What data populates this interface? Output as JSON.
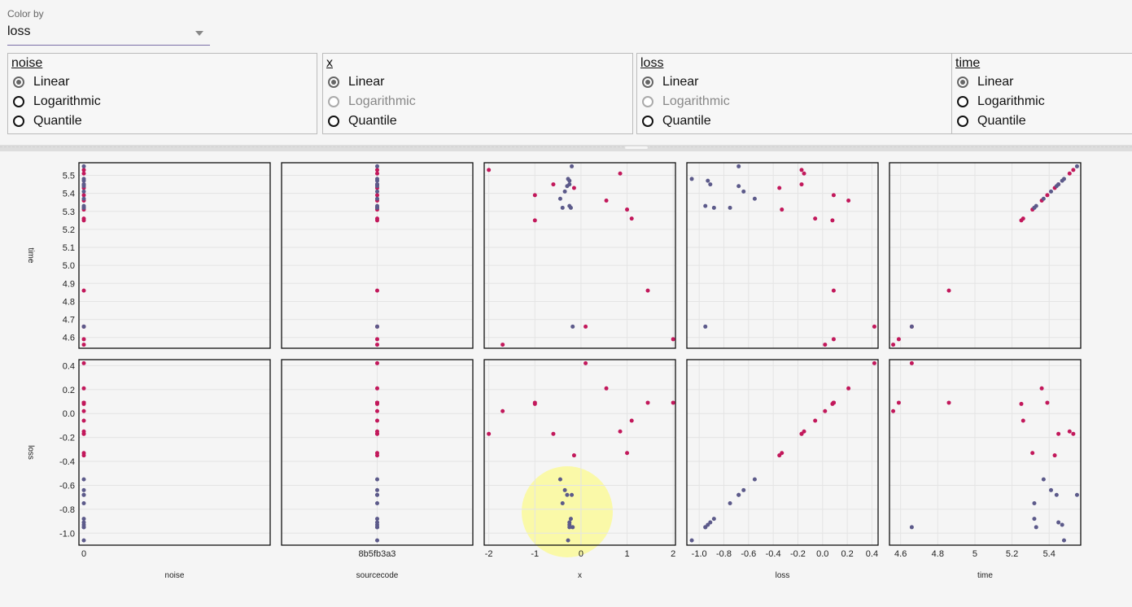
{
  "color_by": {
    "label": "Color by",
    "value": "loss"
  },
  "scales": [
    {
      "title": "noise",
      "options": [
        "Linear",
        "Logarithmic",
        "Quantile"
      ],
      "selected": 0,
      "disabled": []
    },
    {
      "title": "x",
      "options": [
        "Linear",
        "Logarithmic",
        "Quantile"
      ],
      "selected": 0,
      "disabled": [
        1
      ]
    },
    {
      "title": "loss",
      "options": [
        "Linear",
        "Logarithmic",
        "Quantile"
      ],
      "selected": 0,
      "disabled": [
        1
      ]
    },
    {
      "title": "time",
      "options": [
        "Linear",
        "Logarithmic",
        "Quantile"
      ],
      "selected": 0,
      "disabled": []
    }
  ],
  "colors": {
    "high": "#c2185b",
    "low": "#5c5a8a",
    "highlight": "#fbf9a0"
  },
  "chart_data": {
    "type": "scatter",
    "columns": [
      "noise",
      "sourcecode",
      "x",
      "loss",
      "time"
    ],
    "rows": [
      "time",
      "loss"
    ],
    "axes": {
      "noise": {
        "label": "noise",
        "categorical": true,
        "categories": [
          "0"
        ]
      },
      "sourcecode": {
        "label": "sourcecode",
        "categorical": true,
        "categories": [
          "8b5fb3a3"
        ]
      },
      "x": {
        "label": "x",
        "range": [
          -2.1,
          2.05
        ],
        "ticks": [
          -2,
          -1,
          0,
          1,
          2
        ]
      },
      "loss": {
        "label": "loss",
        "range": [
          -1.1,
          0.45
        ],
        "ticks": [
          -1.0,
          -0.8,
          -0.6,
          -0.4,
          -0.2,
          0.0,
          0.2,
          0.4
        ],
        "tick_labels": [
          "-1.0",
          "-0.8",
          "-0.6",
          "-0.4",
          "-0.2",
          "0.0",
          "0.2",
          "0.4"
        ]
      },
      "time": {
        "label": "time",
        "range": [
          4.54,
          5.57
        ],
        "ticks": [
          4.6,
          4.8,
          5.0,
          5.2,
          5.4
        ],
        "y_ticks": [
          4.6,
          4.7,
          4.8,
          4.9,
          5.0,
          5.1,
          5.2,
          5.3,
          5.4,
          5.5
        ],
        "y_tick_labels": [
          "4.6",
          "4.7",
          "4.8",
          "4.9",
          "5.0",
          "5.1",
          "5.2",
          "5.3",
          "5.4",
          "5.5"
        ]
      }
    },
    "points": [
      {
        "x": -2.0,
        "loss": -0.17,
        "time": 5.53
      },
      {
        "x": -1.7,
        "loss": 0.02,
        "time": 4.56
      },
      {
        "x": -1.0,
        "loss": 0.09,
        "time": 5.39
      },
      {
        "x": -1.0,
        "loss": 0.08,
        "time": 5.25
      },
      {
        "x": -0.6,
        "loss": -0.17,
        "time": 5.45
      },
      {
        "x": -0.15,
        "loss": -0.35,
        "time": 5.43
      },
      {
        "x": 0.1,
        "loss": 0.42,
        "time": 4.66
      },
      {
        "x": 0.55,
        "loss": 0.21,
        "time": 5.36
      },
      {
        "x": 0.85,
        "loss": -0.15,
        "time": 5.51
      },
      {
        "x": 1.0,
        "loss": -0.33,
        "time": 5.31
      },
      {
        "x": 1.1,
        "loss": -0.06,
        "time": 5.26
      },
      {
        "x": 1.45,
        "loss": 0.09,
        "time": 4.86
      },
      {
        "x": 2.0,
        "loss": 0.09,
        "time": 4.59
      },
      {
        "x": -0.45,
        "loss": -0.55,
        "time": 5.37
      },
      {
        "x": -0.35,
        "loss": -0.64,
        "time": 5.41
      },
      {
        "x": -0.25,
        "loss": -0.93,
        "time": 5.47
      },
      {
        "x": -0.3,
        "loss": -0.68,
        "time": 5.44
      },
      {
        "x": -0.4,
        "loss": -0.75,
        "time": 5.32
      },
      {
        "x": -0.25,
        "loss": -0.95,
        "time": 5.33
      },
      {
        "x": -0.22,
        "loss": -0.88,
        "time": 5.32
      },
      {
        "x": -0.18,
        "loss": -0.95,
        "time": 4.66
      },
      {
        "x": -0.28,
        "loss": -1.06,
        "time": 5.48
      },
      {
        "x": -0.25,
        "loss": -0.91,
        "time": 5.45
      },
      {
        "x": -0.2,
        "loss": -0.68,
        "time": 5.55
      }
    ]
  }
}
